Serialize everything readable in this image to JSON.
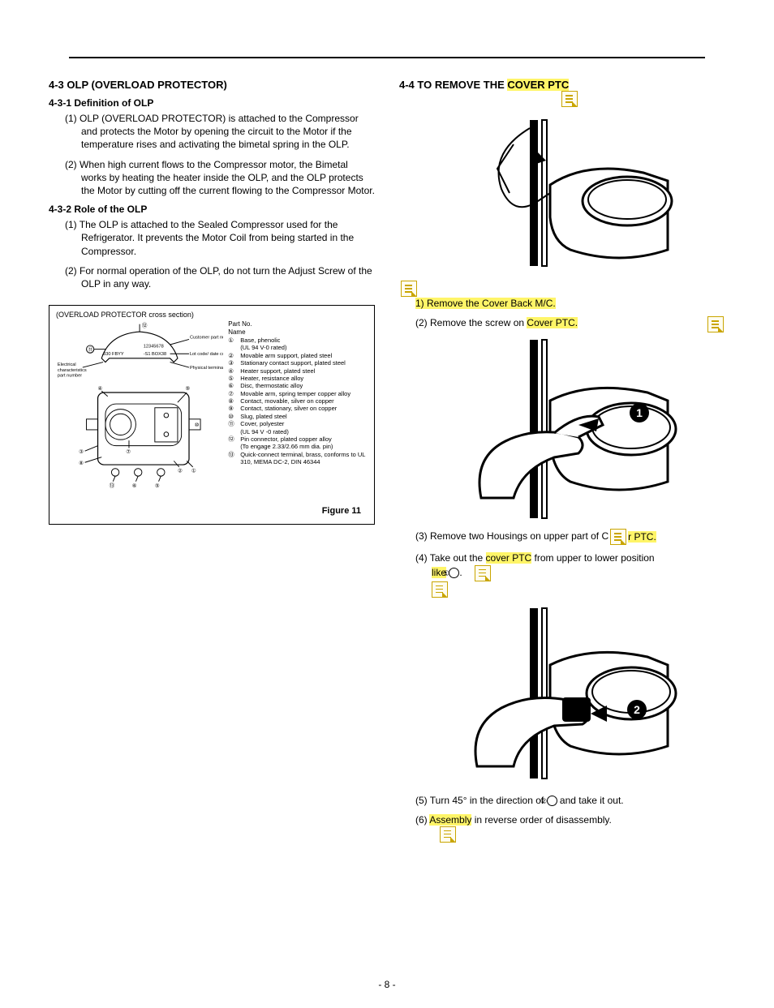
{
  "page_number": "- 8 -",
  "left": {
    "h1": "4-3 OLP (OVERLOAD PROTECTOR)",
    "s1_head": "4-3-1 Definition of OLP",
    "s1_p1_num": "(1)",
    "s1_p1": "OLP (OVERLOAD PROTECTOR) is attached to the Compressor and protects the Motor by opening the circuit to the Motor if the temperature rises and activating the bimetal spring in the OLP.",
    "s1_p2_num": "(2)",
    "s1_p2": "When high current flows to the Compressor motor, the Bimetal works by heating the heater inside the OLP, and the OLP protects the Motor by cutting off the current flowing to the Compressor Motor.",
    "s2_head": "4-3-2 Role of the OLP",
    "s2_p1_num": "(1)",
    "s2_p1": "The OLP is attached to the Sealed Compressor used for the Refrigerator. It prevents the Motor Coil from being started in the Compressor.",
    "s2_p2_num": "(2)",
    "s2_p2": "For normal operation of the OLP, do not turn the Adjust Screw of the OLP in any way.",
    "fig": {
      "title": "(OVERLOAD PROTECTOR cross section)",
      "caption": "Figure  11",
      "labels": {
        "cust": "Customer part number",
        "lot": "Lot code/ date code",
        "phys": "Physical termination part number",
        "elec": "Electrical characteristics part number",
        "code1": "12345678",
        "code2": "-S1  BOX38",
        "code3": "330 FBYY"
      },
      "parts_head_no": "Part No.",
      "parts_head_name": "Name",
      "parts": [
        {
          "n": "①",
          "t": "Base, phenolic"
        },
        {
          "n": "",
          "t": "(UL  94 V-0 rated)"
        },
        {
          "n": "②",
          "t": "Movable arm support, plated steel"
        },
        {
          "n": "③",
          "t": "Stationary contact support, plated steel"
        },
        {
          "n": "④",
          "t": "Heater support, plated steel"
        },
        {
          "n": "⑤",
          "t": "Heater, resistance alloy"
        },
        {
          "n": "⑥",
          "t": "Disc, thermostatic alloy"
        },
        {
          "n": "⑦",
          "t": "Movable arm, spring temper copper alloy"
        },
        {
          "n": "⑧",
          "t": "Contact, movable, silver on copper"
        },
        {
          "n": "⑨",
          "t": "Contact, stationary, silver on copper"
        },
        {
          "n": "⑩",
          "t": "Slug, plated steel"
        },
        {
          "n": "⑪",
          "t": "Cover, polyester"
        },
        {
          "n": "",
          "t": "(UL  94 V  -0 rated)"
        },
        {
          "n": "⑫",
          "t": "Pin connector, plated copper alloy"
        },
        {
          "n": "",
          "t": "(To engage 2.33/2.66 mm dia. pin)"
        },
        {
          "n": "⑬",
          "t": "Quick-connect terminal, brass, conforms to UL 310, MEMA DC-2, DIN 46344"
        }
      ]
    }
  },
  "right": {
    "h1_pre": "4-4 TO REMOVE THE ",
    "h1_hl": "COVER PTC",
    "step1_num": "1)",
    "step1": "Remove the Cover Back M/C.",
    "step2_num": "(2)",
    "step2_pre": "Remove the screw on ",
    "step2_hl": "Cover PTC.",
    "step3_num": "(3)",
    "step3_pre": "Remove two Housings on upper part of ",
    "step3_mid": "C",
    "step3_hl": "r PTC.",
    "step4_num": "(4)",
    "step4_pre": "Take out the ",
    "step4_hl1": "cover PTC",
    "step4_mid": " from upper to lower position ",
    "step4_hl2": "like",
    "step4_circ": "①",
    "step4_dot": ".",
    "step5_num": "(5)",
    "step5_pre": "Turn 45° in the direction of ",
    "step5_circ": "②",
    "step5_post": " and take it out.",
    "step6_num": "(6)",
    "step6_hl": "Assembly",
    "step6_post": " in reverse order of disassembly."
  },
  "colors": {
    "highlight": "#fff568",
    "note_border": "#c9a500",
    "text": "#000000",
    "bg": "#ffffff"
  }
}
